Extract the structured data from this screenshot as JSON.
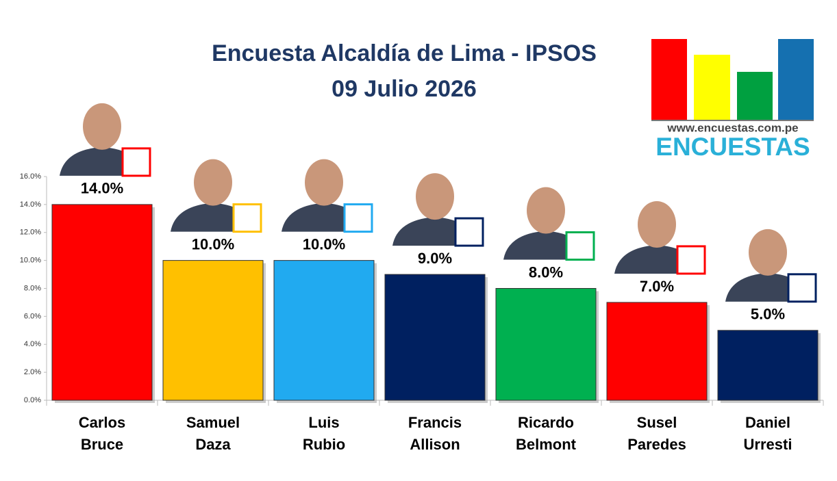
{
  "chart_data": {
    "type": "bar",
    "title": "Encuesta Alcaldía de Lima - IPSOS",
    "subtitle": "09 Julio 2026",
    "categories": [
      "Carlos Bruce",
      "Samuel Daza",
      "Luis Rubio",
      "Francis Allison",
      "Ricardo Belmont",
      "Susel Paredes",
      "Daniel Urresti"
    ],
    "values": [
      14,
      10,
      10,
      9,
      8,
      7,
      5
    ],
    "value_labels": [
      "14.0%",
      "10.0%",
      "10.0%",
      "9.0%",
      "8.0%",
      "7.0%",
      "5.0%"
    ],
    "colors": [
      "#ff0000",
      "#ffc000",
      "#21aaf0",
      "#002060",
      "#00b050",
      "#ff0000",
      "#002060"
    ],
    "ylim": [
      0,
      16
    ],
    "yticks": [
      {
        "value": 0,
        "label": "0.0%"
      },
      {
        "value": 2,
        "label": "2.0%"
      },
      {
        "value": 4,
        "label": "4.0%"
      },
      {
        "value": 6,
        "label": "6.0%"
      },
      {
        "value": 8,
        "label": "8.0%"
      },
      {
        "value": 10,
        "label": "10.0%"
      },
      {
        "value": 12,
        "label": "12.0%"
      },
      {
        "value": 14,
        "label": "14.0%"
      },
      {
        "value": 16,
        "label": "16.0%"
      }
    ],
    "grid": false
  },
  "logo": {
    "url": "www.encuestas.com.pe",
    "name": "ENCUESTAS"
  }
}
